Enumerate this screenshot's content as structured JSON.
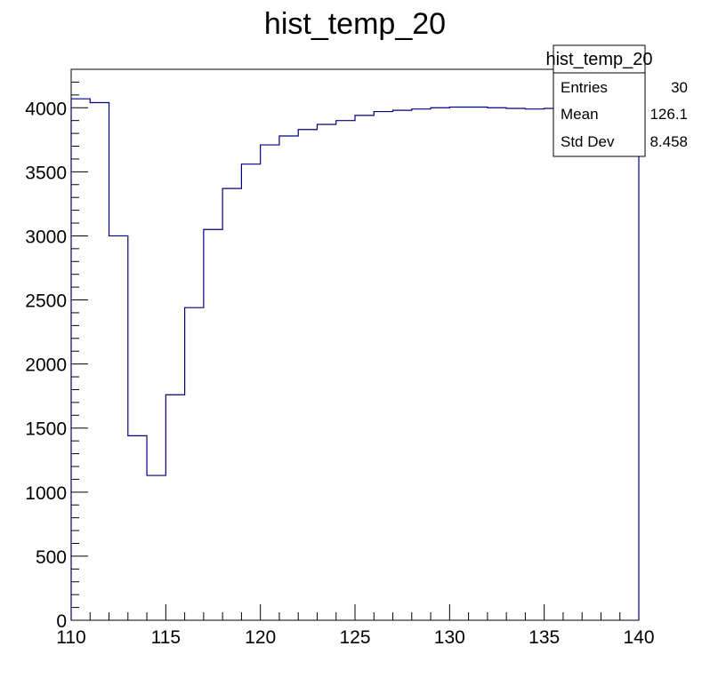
{
  "chart_data": {
    "type": "histogram",
    "title": "hist_temp_20",
    "xlabel": "",
    "ylabel": "",
    "xlim": [
      110,
      140
    ],
    "ylim": [
      0,
      4300
    ],
    "bin_edges": [
      110,
      111,
      112,
      113,
      114,
      115,
      116,
      117,
      118,
      119,
      120,
      121,
      122,
      123,
      124,
      125,
      126,
      127,
      128,
      129,
      130,
      131,
      132,
      133,
      134,
      135,
      136,
      137,
      138,
      139,
      140
    ],
    "values": [
      4070,
      4040,
      3000,
      1440,
      1130,
      1760,
      2440,
      3050,
      3370,
      3560,
      3710,
      3780,
      3830,
      3870,
      3900,
      3940,
      3970,
      3980,
      3990,
      4000,
      4005,
      4005,
      4000,
      3995,
      3990,
      3995,
      4000,
      4000,
      4000,
      4000
    ],
    "x_ticks": [
      "110",
      "115",
      "120",
      "125",
      "130",
      "135",
      "140"
    ],
    "y_ticks": [
      "0",
      "500",
      "1000",
      "1500",
      "2000",
      "2500",
      "3000",
      "3500",
      "4000"
    ],
    "line_color": "#000080",
    "grid": false
  },
  "stats_box": {
    "title": "hist_temp_20",
    "entries_label": "Entries",
    "entries_value": "30",
    "mean_label": "Mean",
    "mean_value": "126.1",
    "std_label": "Std Dev",
    "std_value": "8.458"
  }
}
